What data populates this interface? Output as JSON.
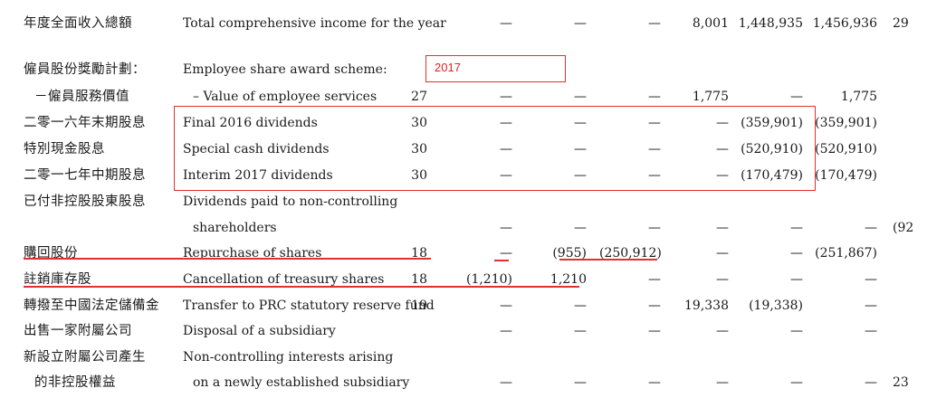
{
  "annotation": {
    "year_label": "2017"
  },
  "rows": [
    {
      "cn": "年度全面收入總額",
      "en": "Total comprehensive income for the year",
      "note": "",
      "c1": "—",
      "c2": "—",
      "c3": "—",
      "c4": "8,001",
      "c5": "1,448,935",
      "c6": "1,456,936",
      "c7": "29"
    },
    {
      "cn": "僱員股份獎勵計劃：",
      "en": "Employee share award scheme:",
      "note": "",
      "c1": "",
      "c2": "",
      "c3": "",
      "c4": "",
      "c5": "",
      "c6": "",
      "c7": ""
    },
    {
      "cn": "－僱員服務價值",
      "en": "– Value of employee services",
      "note": "27",
      "c1": "—",
      "c2": "—",
      "c3": "—",
      "c4": "1,775",
      "c5": "—",
      "c6": "1,775",
      "c7": ""
    },
    {
      "cn": "二零一六年末期股息",
      "en": "Final 2016 dividends",
      "note": "30",
      "c1": "—",
      "c2": "—",
      "c3": "—",
      "c4": "—",
      "c5": "(359,901)",
      "c6": "(359,901)",
      "c7": ""
    },
    {
      "cn": "特別現金股息",
      "en": "Special cash dividends",
      "note": "30",
      "c1": "—",
      "c2": "—",
      "c3": "—",
      "c4": "—",
      "c5": "(520,910)",
      "c6": "(520,910)",
      "c7": ""
    },
    {
      "cn": "二零一七年中期股息",
      "en": "Interim 2017 dividends",
      "note": "30",
      "c1": "—",
      "c2": "—",
      "c3": "—",
      "c4": "—",
      "c5": "(170,479)",
      "c6": "(170,479)",
      "c7": ""
    },
    {
      "cn": "已付非控股股東股息",
      "en": "Dividends paid to non-controlling",
      "note": "",
      "c1": "",
      "c2": "",
      "c3": "",
      "c4": "",
      "c5": "",
      "c6": "",
      "c7": ""
    },
    {
      "cn": "",
      "en": "shareholders",
      "note": "",
      "c1": "—",
      "c2": "—",
      "c3": "—",
      "c4": "—",
      "c5": "—",
      "c6": "—",
      "c7": "(92"
    },
    {
      "cn": "購回股份",
      "en": "Repurchase of shares",
      "note": "18",
      "c1": "—",
      "c2": "(955)",
      "c3": "(250,912)",
      "c4": "—",
      "c5": "—",
      "c6": "(251,867)",
      "c7": ""
    },
    {
      "cn": "註銷庫存股",
      "en": "Cancellation of treasury shares",
      "note": "18",
      "c1": "(1,210)",
      "c2": "1,210",
      "c3": "—",
      "c4": "—",
      "c5": "—",
      "c6": "—",
      "c7": ""
    },
    {
      "cn": "轉撥至中國法定儲備金",
      "en": "Transfer to PRC statutory reserve fund",
      "note": "19",
      "c1": "—",
      "c2": "—",
      "c3": "—",
      "c4": "19,338",
      "c5": "(19,338)",
      "c6": "—",
      "c7": ""
    },
    {
      "cn": "出售一家附屬公司",
      "en": "Disposal of a subsidiary",
      "note": "",
      "c1": "—",
      "c2": "—",
      "c3": "—",
      "c4": "—",
      "c5": "—",
      "c6": "—",
      "c7": ""
    },
    {
      "cn": "新設立附屬公司產生",
      "en": "Non-controlling interests arising",
      "note": "",
      "c1": "",
      "c2": "",
      "c3": "",
      "c4": "",
      "c5": "",
      "c6": "",
      "c7": ""
    },
    {
      "cn": "的非控股權益",
      "en": "on a newly established subsidiary",
      "note": "",
      "c1": "—",
      "c2": "—",
      "c3": "—",
      "c4": "—",
      "c5": "—",
      "c6": "—",
      "c7": "23"
    }
  ]
}
